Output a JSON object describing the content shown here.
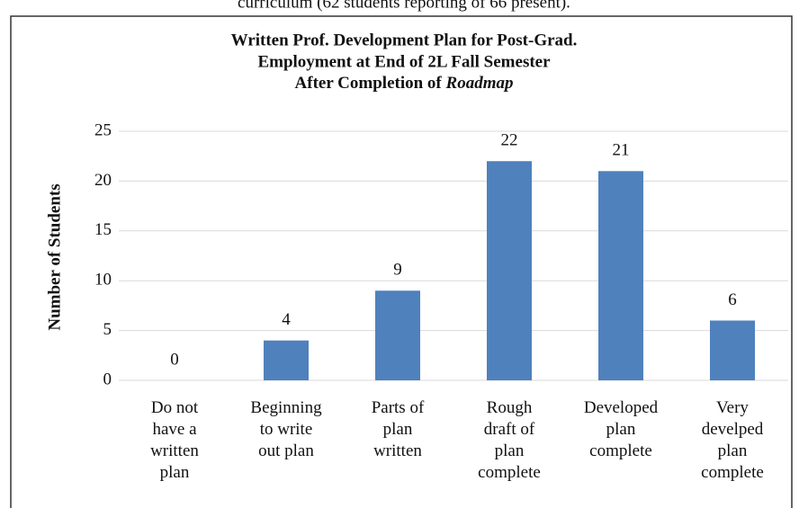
{
  "caption": "curriculum (62 students reporting of 66 present).",
  "chart_data": {
    "type": "bar",
    "title": [
      "Written Prof. Development Plan for Post-Grad.",
      "Employment at End of 2L Fall Semester",
      "After Completion of Roadmap"
    ],
    "y_label": "Number of Students",
    "categories": [
      "Do not have a written plan",
      "Beginning to write out plan",
      "Parts of plan written",
      "Rough draft of plan complete",
      "Developed plan complete",
      "Very develped plan complete"
    ],
    "values": [
      0,
      4,
      9,
      22,
      21,
      6
    ],
    "color": "#4f81bd",
    "ylim": [
      0,
      25
    ],
    "yticks": [
      0,
      5,
      10,
      15,
      20,
      25
    ],
    "grid": true
  }
}
